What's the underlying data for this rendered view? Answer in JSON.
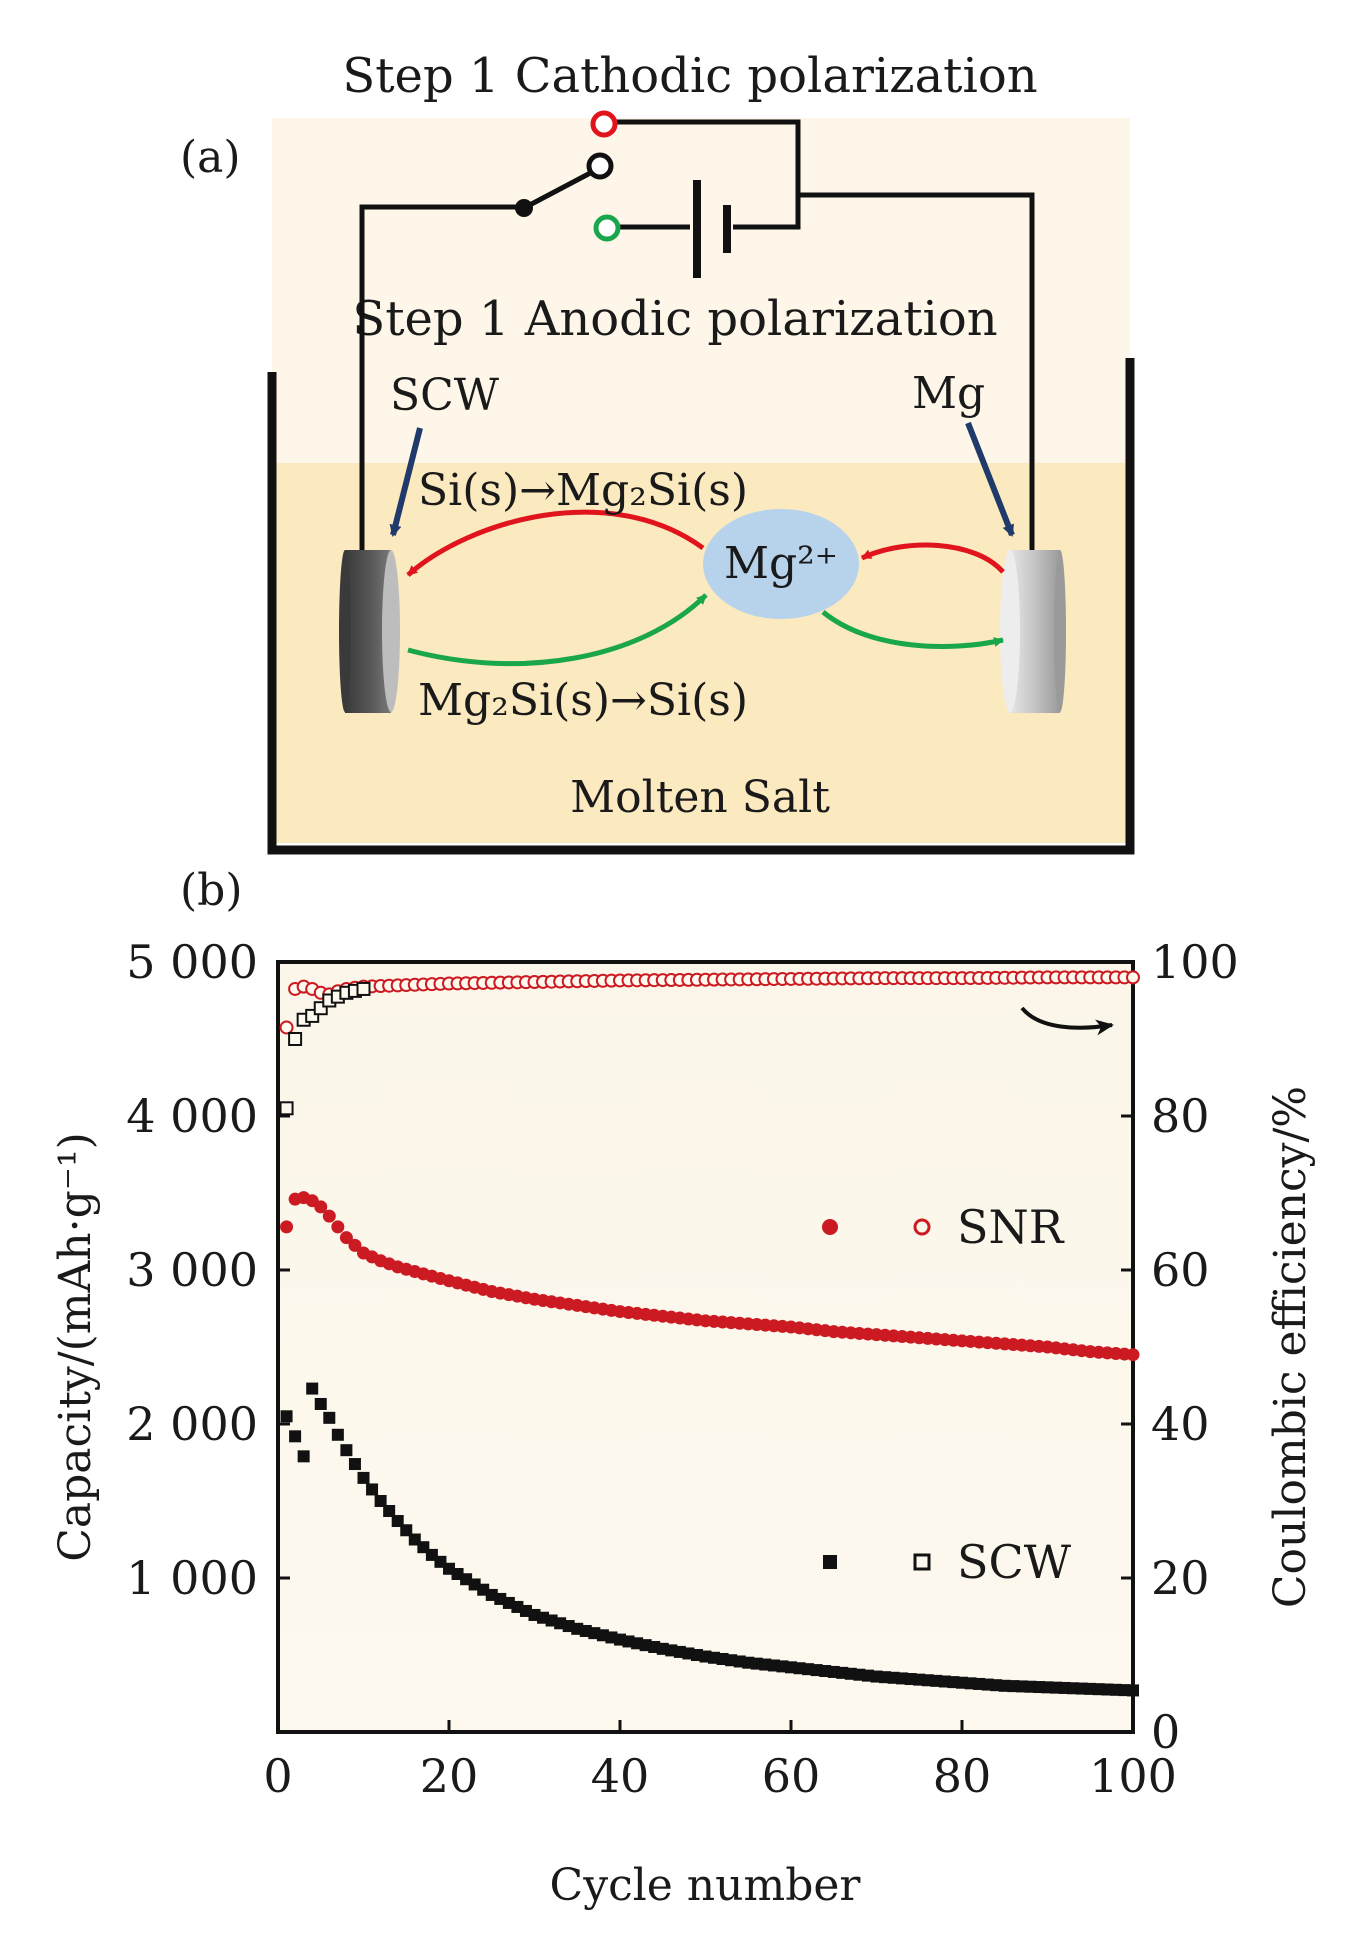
{
  "panel_a": {
    "label": "(a)",
    "step_top": "Step 1 Cathodic polarization",
    "step_bottom": "Step 1 Anodic polarization",
    "electrode_left": "SCW",
    "electrode_right": "Mg",
    "reaction_top": "Si(s)→Mg₂Si(s)",
    "reaction_bottom": "Mg₂Si(s)→Si(s)",
    "ion": "Mg²⁺",
    "bath": "Molten Salt",
    "colors": {
      "cathodic": "#e0141c",
      "anodic": "#1aa64a",
      "salt": "#fbe9bf",
      "ion_bubble": "#b7d3ec",
      "pointer": "#1f3a6b"
    }
  },
  "panel_b": {
    "label": "(b)"
  },
  "chart_data": {
    "type": "scatter",
    "xlabel": "Cycle number",
    "ylabel": "Capacity/(mAh·g⁻¹)",
    "y2label": "Coulombic efficiency/%",
    "xlim": [
      0,
      100
    ],
    "ylim": [
      0,
      5000
    ],
    "y2lim": [
      0,
      100
    ],
    "xticks": [
      "0",
      "20",
      "40",
      "60",
      "80",
      "100"
    ],
    "yticks": [
      "1 000",
      "2 000",
      "3 000",
      "4 000",
      "5 000"
    ],
    "y2ticks": [
      "0",
      "20",
      "40",
      "60",
      "80",
      "100"
    ],
    "legend": [
      {
        "name": "SNR",
        "color": "#cc1a22"
      },
      {
        "name": "SCW",
        "color": "#111111"
      }
    ],
    "legend_position": "right",
    "series": [
      {
        "name": "SNR",
        "kind": "capacity",
        "axis": "left",
        "marker": "filled-circle",
        "color": "#cc1a22",
        "x": [
          1,
          2,
          3,
          4,
          5,
          6,
          7,
          8,
          9,
          10,
          12,
          14,
          16,
          18,
          20,
          25,
          30,
          35,
          40,
          45,
          50,
          55,
          60,
          65,
          70,
          75,
          80,
          85,
          90,
          95,
          100
        ],
        "values": [
          3280,
          3460,
          3470,
          3450,
          3410,
          3350,
          3280,
          3210,
          3160,
          3110,
          3060,
          3020,
          2990,
          2960,
          2930,
          2860,
          2810,
          2770,
          2730,
          2700,
          2670,
          2650,
          2630,
          2600,
          2580,
          2560,
          2540,
          2520,
          2500,
          2470,
          2450
        ]
      },
      {
        "name": "SNR",
        "kind": "efficiency",
        "axis": "right",
        "marker": "open-circle",
        "color": "#cc1a22",
        "x": [
          1,
          2,
          3,
          4,
          5,
          6,
          7,
          8,
          10,
          15,
          20,
          30,
          40,
          50,
          60,
          70,
          80,
          90,
          100
        ],
        "values": [
          91.5,
          96.5,
          96.8,
          96.5,
          96,
          95.8,
          96.2,
          96.5,
          96.8,
          97,
          97.2,
          97.4,
          97.6,
          97.7,
          97.8,
          97.9,
          97.9,
          98,
          98
        ]
      },
      {
        "name": "SCW",
        "kind": "capacity",
        "axis": "left",
        "marker": "filled-square",
        "color": "#111111",
        "x": [
          1,
          2,
          3,
          4,
          5,
          6,
          7,
          8,
          9,
          10,
          12,
          14,
          16,
          18,
          20,
          25,
          30,
          35,
          40,
          45,
          50,
          55,
          60,
          65,
          70,
          75,
          80,
          85,
          90,
          95,
          100
        ],
        "values": [
          2050,
          1920,
          1790,
          2230,
          2130,
          2040,
          1930,
          1830,
          1740,
          1650,
          1500,
          1370,
          1250,
          1150,
          1060,
          890,
          760,
          670,
          600,
          540,
          490,
          450,
          420,
          390,
          360,
          340,
          320,
          300,
          290,
          280,
          270
        ]
      },
      {
        "name": "SCW",
        "kind": "efficiency",
        "axis": "right",
        "marker": "open-square",
        "color": "#111111",
        "x": [
          1,
          2,
          3,
          4,
          5,
          6,
          7,
          8,
          10
        ],
        "values": [
          81,
          90,
          92.5,
          93,
          94,
          95,
          95.5,
          96,
          96.5
        ]
      }
    ]
  }
}
